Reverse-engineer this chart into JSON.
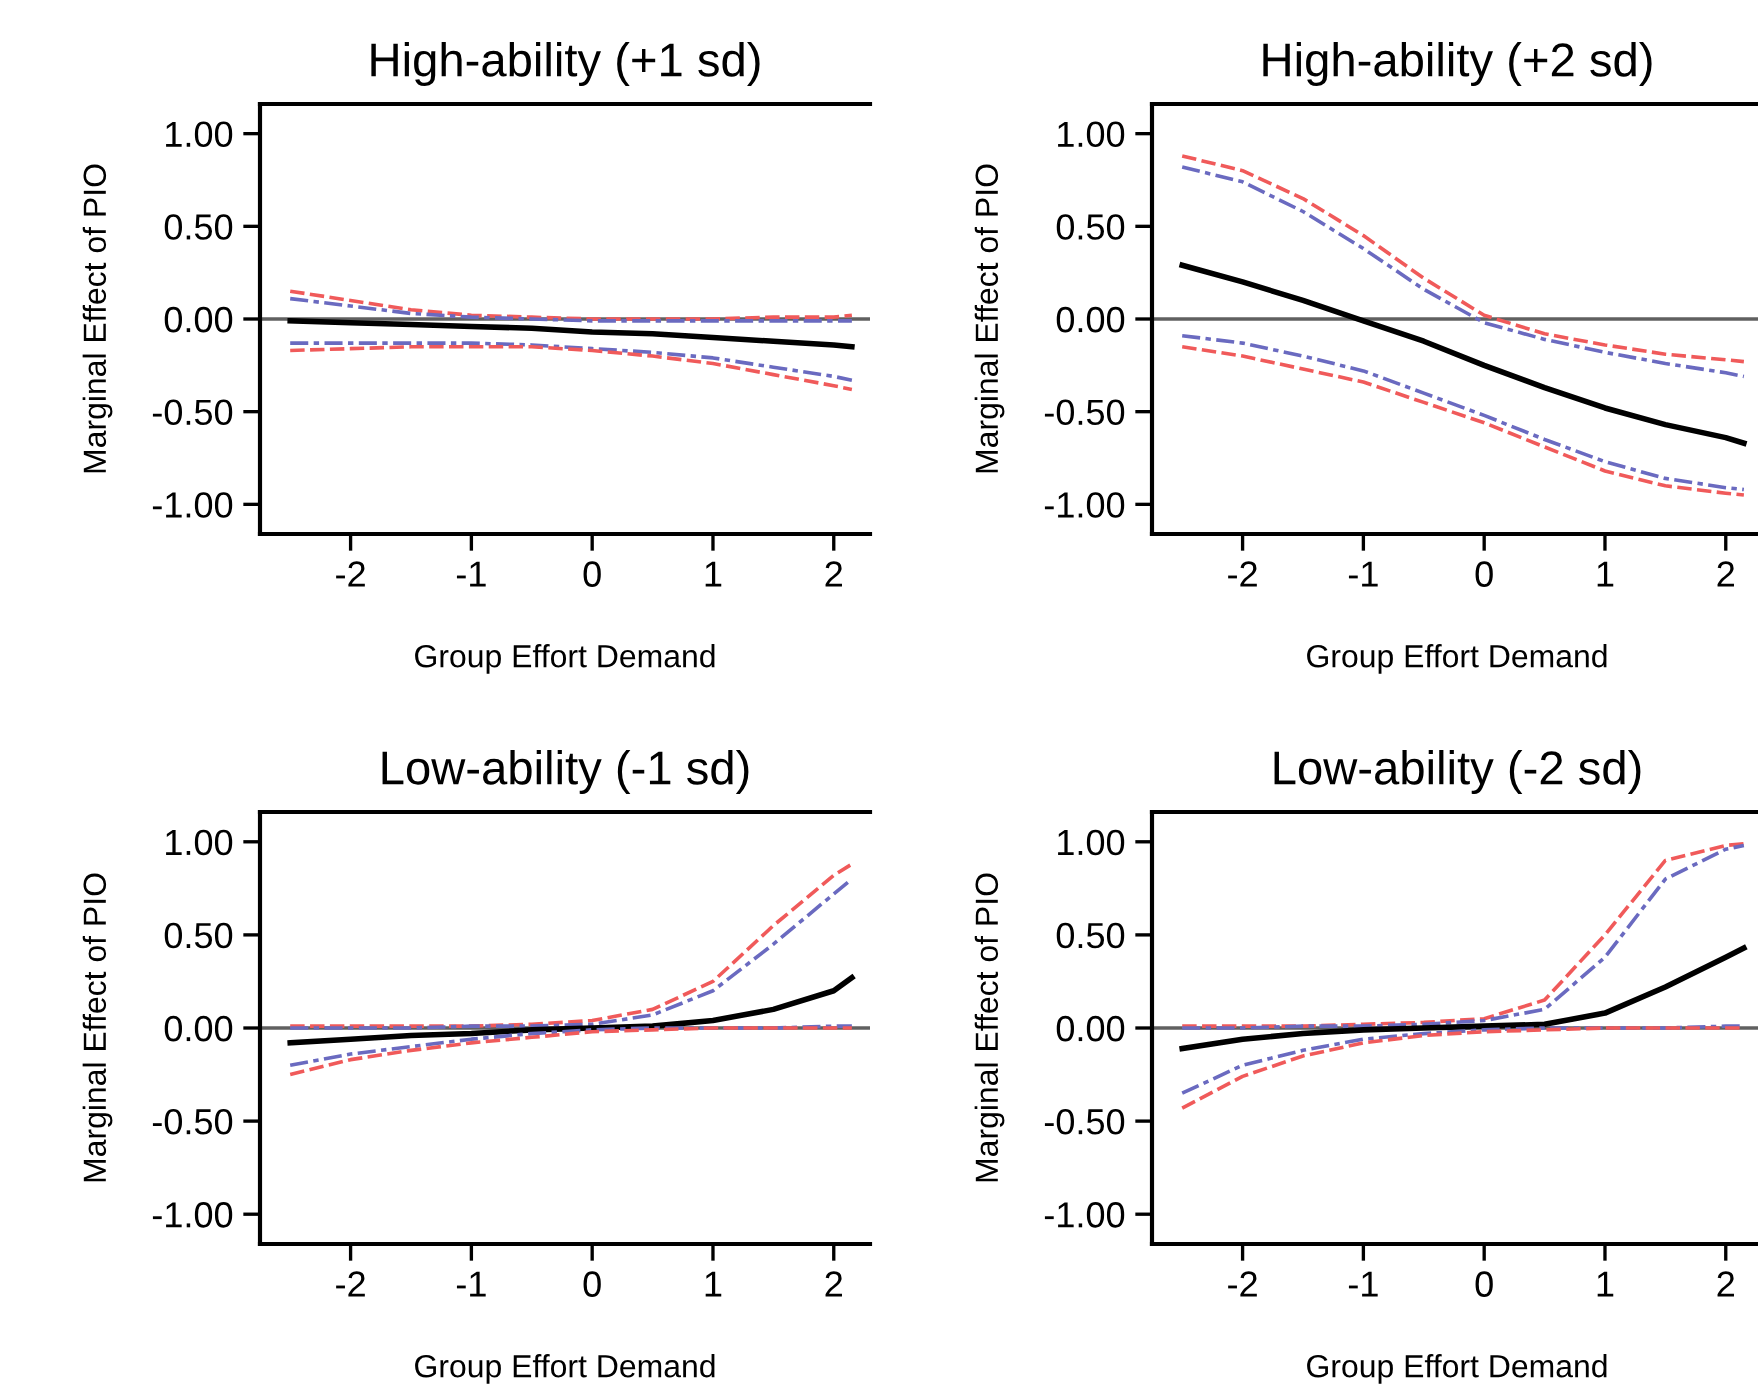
{
  "chart_data": [
    {
      "type": "line",
      "title": "High-ability (+1 sd)",
      "xlabel": "Group Effort Demand",
      "ylabel": "Marginal Effect of PIO",
      "x": [
        -2.5,
        -2,
        -1.5,
        -1,
        -0.5,
        0,
        0.5,
        1,
        1.5,
        2,
        2.15
      ],
      "series": [
        {
          "color": "#f05a5a",
          "line_style": "dashed",
          "values": [
            0.15,
            0.1,
            0.05,
            0.02,
            0.01,
            0.0,
            0.0,
            0.0,
            0.01,
            0.01,
            0.02
          ]
        },
        {
          "color": "#6a6ac0",
          "line_style": "dashdot",
          "values": [
            0.11,
            0.07,
            0.03,
            0.01,
            0.0,
            -0.01,
            -0.01,
            -0.01,
            -0.01,
            -0.01,
            -0.01
          ]
        },
        {
          "color": "#000000",
          "line_style": "solid",
          "values": [
            -0.01,
            -0.02,
            -0.03,
            -0.04,
            -0.05,
            -0.07,
            -0.08,
            -0.1,
            -0.12,
            -0.14,
            -0.15
          ]
        },
        {
          "color": "#6a6ac0",
          "line_style": "dashdot",
          "values": [
            -0.13,
            -0.13,
            -0.13,
            -0.13,
            -0.14,
            -0.16,
            -0.18,
            -0.21,
            -0.26,
            -0.31,
            -0.33
          ]
        },
        {
          "color": "#f05a5a",
          "line_style": "dashed",
          "values": [
            -0.17,
            -0.16,
            -0.15,
            -0.15,
            -0.15,
            -0.17,
            -0.2,
            -0.24,
            -0.3,
            -0.36,
            -0.38
          ]
        }
      ],
      "xlim": [
        -2.75,
        2.3
      ],
      "xticks": [
        -2,
        -1,
        0,
        1,
        2
      ],
      "ylim": [
        -1.16,
        1.16
      ],
      "yticks": [
        {
          "value": -1,
          "label": "-1.00"
        },
        {
          "value": -0.5,
          "label": "-0.50"
        },
        {
          "value": 0,
          "label": "0.00"
        },
        {
          "value": 0.5,
          "label": "0.50"
        },
        {
          "value": 1,
          "label": "1.00"
        }
      ],
      "ref_lines": [
        {
          "axis": "y",
          "value": 0,
          "color": "#606060"
        }
      ]
    },
    {
      "type": "line",
      "title": "High-ability (+2 sd)",
      "xlabel": "Group Effort Demand",
      "ylabel": "Marginal Effect of PIO",
      "x": [
        -2.5,
        -2,
        -1.5,
        -1,
        -0.5,
        0,
        0.5,
        1,
        1.5,
        2,
        2.15
      ],
      "series": [
        {
          "color": "#f05a5a",
          "line_style": "dashed",
          "values": [
            0.88,
            0.8,
            0.65,
            0.45,
            0.22,
            0.02,
            -0.08,
            -0.14,
            -0.19,
            -0.22,
            -0.23
          ]
        },
        {
          "color": "#6a6ac0",
          "line_style": "dashdot",
          "values": [
            0.82,
            0.74,
            0.58,
            0.38,
            0.16,
            -0.02,
            -0.11,
            -0.18,
            -0.24,
            -0.29,
            -0.31
          ]
        },
        {
          "color": "#000000",
          "line_style": "solid",
          "values": [
            0.29,
            0.2,
            0.1,
            -0.01,
            -0.12,
            -0.25,
            -0.37,
            -0.48,
            -0.57,
            -0.64,
            -0.67
          ]
        },
        {
          "color": "#6a6ac0",
          "line_style": "dashdot",
          "values": [
            -0.09,
            -0.13,
            -0.2,
            -0.28,
            -0.4,
            -0.52,
            -0.65,
            -0.77,
            -0.86,
            -0.91,
            -0.92
          ]
        },
        {
          "color": "#f05a5a",
          "line_style": "dashed",
          "values": [
            -0.15,
            -0.2,
            -0.27,
            -0.34,
            -0.45,
            -0.56,
            -0.69,
            -0.82,
            -0.9,
            -0.94,
            -0.95
          ]
        }
      ],
      "xlim": [
        -2.75,
        2.3
      ],
      "xticks": [
        -2,
        -1,
        0,
        1,
        2
      ],
      "ylim": [
        -1.16,
        1.16
      ],
      "yticks": [
        {
          "value": -1,
          "label": "-1.00"
        },
        {
          "value": -0.5,
          "label": "-0.50"
        },
        {
          "value": 0,
          "label": "0.00"
        },
        {
          "value": 0.5,
          "label": "0.50"
        },
        {
          "value": 1,
          "label": "1.00"
        }
      ],
      "ref_lines": [
        {
          "axis": "y",
          "value": 0,
          "color": "#606060"
        }
      ]
    },
    {
      "type": "line",
      "title": "Low-ability (-1 sd)",
      "xlabel": "Group Effort Demand",
      "ylabel": "Marginal Effect of PIO",
      "x": [
        -2.5,
        -2,
        -1.5,
        -1,
        -0.5,
        0,
        0.5,
        1,
        1.5,
        2,
        2.15
      ],
      "series": [
        {
          "color": "#f05a5a",
          "line_style": "dashed",
          "values": [
            0.01,
            0.01,
            0.01,
            0.01,
            0.02,
            0.04,
            0.1,
            0.25,
            0.55,
            0.82,
            0.88
          ]
        },
        {
          "color": "#6a6ac0",
          "line_style": "dashdot",
          "values": [
            0.0,
            0.0,
            0.0,
            0.01,
            0.01,
            0.02,
            0.07,
            0.2,
            0.45,
            0.72,
            0.8
          ]
        },
        {
          "color": "#000000",
          "line_style": "solid",
          "values": [
            -0.08,
            -0.06,
            -0.04,
            -0.03,
            -0.01,
            0.0,
            0.01,
            0.04,
            0.1,
            0.2,
            0.27
          ]
        },
        {
          "color": "#6a6ac0",
          "line_style": "dashdot",
          "values": [
            -0.2,
            -0.14,
            -0.1,
            -0.06,
            -0.03,
            -0.01,
            0.0,
            0.0,
            0.0,
            0.01,
            0.01
          ]
        },
        {
          "color": "#f05a5a",
          "line_style": "dashed",
          "values": [
            -0.25,
            -0.17,
            -0.12,
            -0.08,
            -0.05,
            -0.02,
            -0.01,
            0.0,
            0.0,
            0.0,
            0.0
          ]
        }
      ],
      "xlim": [
        -2.75,
        2.3
      ],
      "xticks": [
        -2,
        -1,
        0,
        1,
        2
      ],
      "ylim": [
        -1.16,
        1.16
      ],
      "yticks": [
        {
          "value": -1,
          "label": "-1.00"
        },
        {
          "value": -0.5,
          "label": "-0.50"
        },
        {
          "value": 0,
          "label": "0.00"
        },
        {
          "value": 0.5,
          "label": "0.50"
        },
        {
          "value": 1,
          "label": "1.00"
        }
      ],
      "ref_lines": [
        {
          "axis": "y",
          "value": 0,
          "color": "#606060"
        }
      ]
    },
    {
      "type": "line",
      "title": "Low-ability (-2 sd)",
      "xlabel": "Group Effort Demand",
      "ylabel": "Marginal Effect of PIO",
      "x": [
        -2.5,
        -2,
        -1.5,
        -1,
        -0.5,
        0,
        0.5,
        1,
        1.5,
        2,
        2.15
      ],
      "series": [
        {
          "color": "#f05a5a",
          "line_style": "dashed",
          "values": [
            0.01,
            0.01,
            0.01,
            0.02,
            0.03,
            0.05,
            0.15,
            0.5,
            0.9,
            0.98,
            0.99
          ]
        },
        {
          "color": "#6a6ac0",
          "line_style": "dashdot",
          "values": [
            0.0,
            0.0,
            0.01,
            0.01,
            0.02,
            0.04,
            0.1,
            0.38,
            0.8,
            0.96,
            0.98
          ]
        },
        {
          "color": "#000000",
          "line_style": "solid",
          "values": [
            -0.11,
            -0.06,
            -0.03,
            -0.01,
            0.0,
            0.01,
            0.02,
            0.08,
            0.22,
            0.38,
            0.43
          ]
        },
        {
          "color": "#6a6ac0",
          "line_style": "dashdot",
          "values": [
            -0.35,
            -0.2,
            -0.12,
            -0.06,
            -0.03,
            -0.01,
            0.0,
            0.0,
            0.0,
            0.01,
            0.01
          ]
        },
        {
          "color": "#f05a5a",
          "line_style": "dashed",
          "values": [
            -0.43,
            -0.26,
            -0.15,
            -0.08,
            -0.04,
            -0.02,
            -0.01,
            0.0,
            0.0,
            0.0,
            0.0
          ]
        }
      ],
      "xlim": [
        -2.75,
        2.3
      ],
      "xticks": [
        -2,
        -1,
        0,
        1,
        2
      ],
      "ylim": [
        -1.16,
        1.16
      ],
      "yticks": [
        {
          "value": -1,
          "label": "-1.00"
        },
        {
          "value": -0.5,
          "label": "-0.50"
        },
        {
          "value": 0,
          "label": "0.00"
        },
        {
          "value": 0.5,
          "label": "0.50"
        },
        {
          "value": 1,
          "label": "1.00"
        }
      ],
      "ref_lines": [
        {
          "axis": "y",
          "value": 0,
          "color": "#606060"
        }
      ]
    }
  ]
}
